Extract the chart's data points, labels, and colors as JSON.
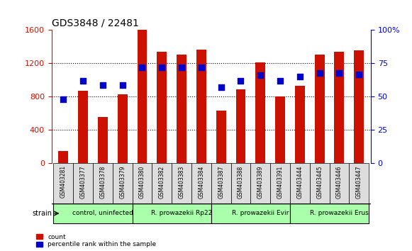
{
  "title": "GDS3848 / 22481",
  "samples": [
    "GSM403281",
    "GSM403377",
    "GSM403378",
    "GSM403379",
    "GSM403380",
    "GSM403382",
    "GSM403383",
    "GSM403384",
    "GSM403387",
    "GSM403388",
    "GSM403389",
    "GSM403391",
    "GSM403444",
    "GSM403445",
    "GSM403446",
    "GSM403447"
  ],
  "counts": [
    150,
    870,
    560,
    830,
    1600,
    1340,
    1310,
    1370,
    630,
    890,
    1210,
    800,
    930,
    1310,
    1340,
    1360
  ],
  "percentiles": [
    48,
    62,
    59,
    59,
    72,
    72,
    72,
    72,
    57,
    62,
    66,
    62,
    65,
    68,
    68,
    67
  ],
  "bar_color": "#cc1100",
  "dot_color": "#0000cc",
  "left_ylim": [
    0,
    1600
  ],
  "right_ylim": [
    0,
    100
  ],
  "left_yticks": [
    0,
    400,
    800,
    1200,
    1600
  ],
  "right_yticks": [
    0,
    25,
    50,
    75,
    100
  ],
  "right_yticklabels": [
    "0",
    "25",
    "50",
    "75",
    "100%"
  ],
  "groups": [
    {
      "label": "control, uninfected",
      "start": 0,
      "end": 4,
      "color": "#aaffaa"
    },
    {
      "label": "R. prowazekii Rp22",
      "start": 4,
      "end": 8,
      "color": "#aaffaa"
    },
    {
      "label": "R. prowazekii Evir",
      "start": 8,
      "end": 12,
      "color": "#aaffaa"
    },
    {
      "label": "R. prowazekii Erus",
      "start": 12,
      "end": 16,
      "color": "#aaffaa"
    }
  ],
  "strain_label": "strain",
  "legend_count": "count",
  "legend_percentile": "percentile rank within the sample",
  "tick_bg_color": "#dddddd",
  "group_border_color": "#000000",
  "dot_scale": 16.0
}
